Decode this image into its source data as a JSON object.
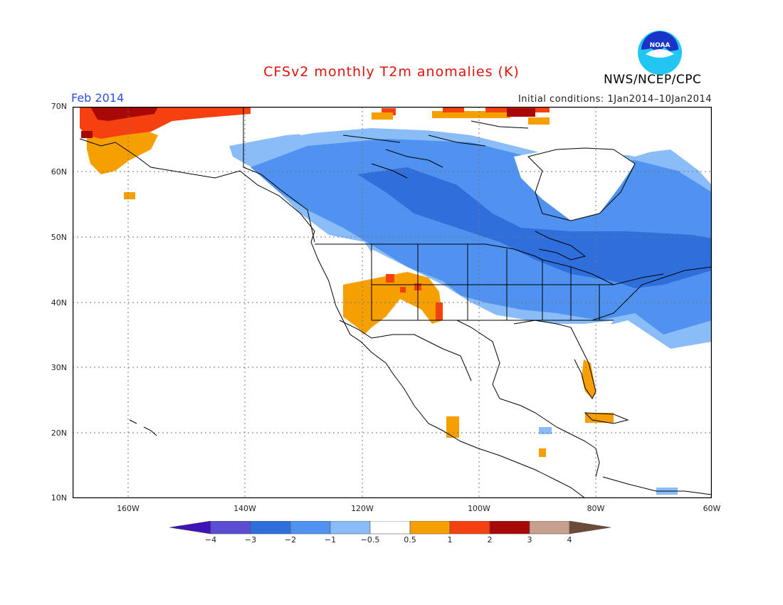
{
  "title": "CFSv2 monthly T2m anomalies (K)",
  "valid_month": "Feb 2014",
  "initial_conditions": "Initial conditions: 1Jan2014–10Jan2014",
  "agency": "NWS/NCEP/CPC",
  "logo_text": "NOAA",
  "latitude_labels": [
    "70N",
    "60N",
    "50N",
    "40N",
    "30N",
    "20N",
    "10N"
  ],
  "longitude_labels": [
    "160W",
    "140W",
    "120W",
    "100W",
    "80W",
    "60W"
  ],
  "colorbar": {
    "labels": [
      "−4",
      "−3",
      "−2",
      "−1",
      "−0.5",
      "0.5",
      "1",
      "2",
      "3",
      "4"
    ],
    "colors": [
      "#3e13b8",
      "#5a4ed3",
      "#2f6fdc",
      "#4f92ef",
      "#8abdf7",
      "#ffffff",
      "#f5a000",
      "#f54010",
      "#a80808",
      "#c8a090",
      "#6b4a3a"
    ]
  },
  "anomaly_colors": {
    "cold_strong": "#2f6fdc",
    "cold": "#4f92ef",
    "cool": "#8abdf7",
    "warm": "#f5a000",
    "hot": "#f54010",
    "very_hot": "#a80808"
  }
}
